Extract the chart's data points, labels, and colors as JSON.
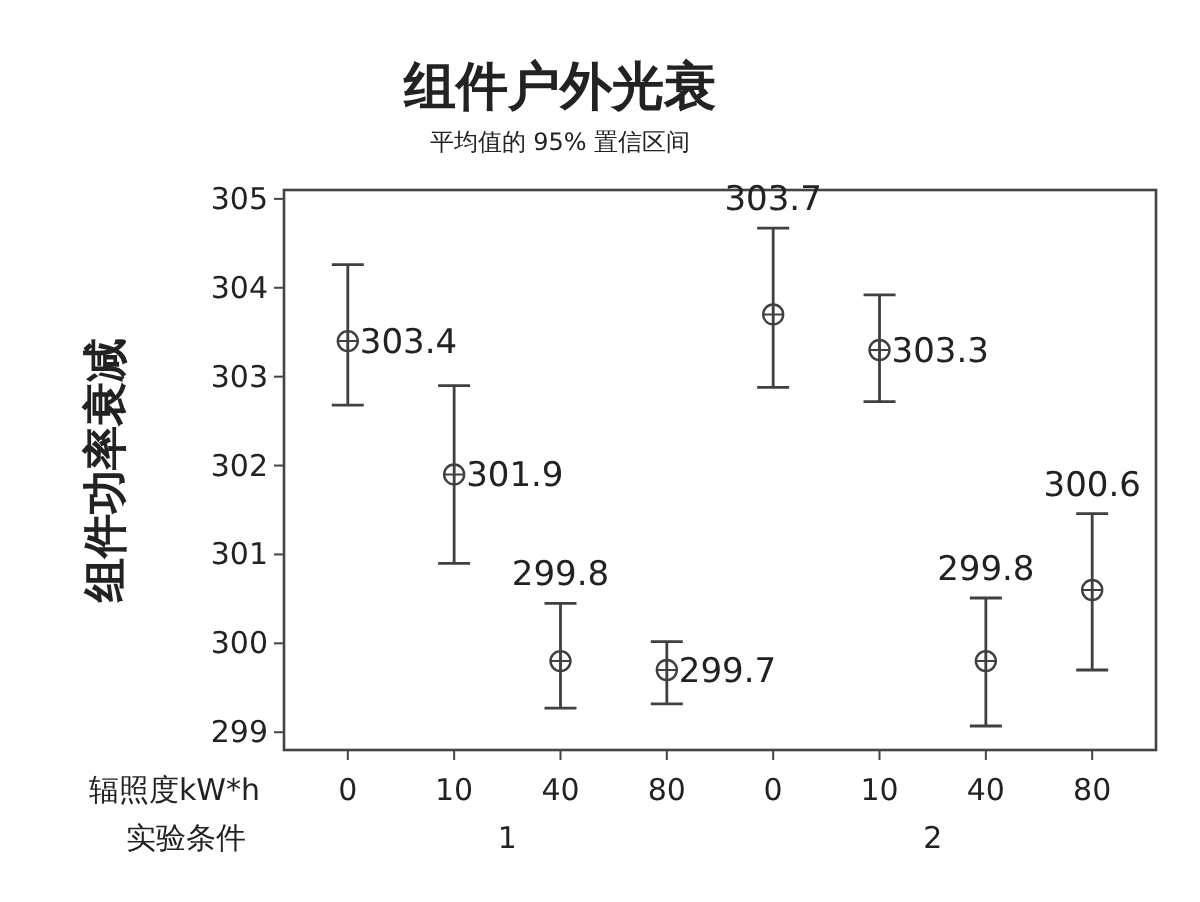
{
  "chart_data": {
    "type": "scatter",
    "title": "组件户外光衰",
    "subtitle": "平均值的 95% 置信区间",
    "ylabel": "组件功率衰减",
    "xlabel": "辐照度kW*h",
    "annotations": [
      "实验条件",
      "1",
      "2"
    ],
    "categories": [
      "0",
      "10",
      "40",
      "80",
      "0",
      "10",
      "40",
      "80"
    ],
    "series": [
      {
        "color": "#404040",
        "values": [
          303.4,
          301.9,
          299.8,
          299.7,
          303.7,
          303.3,
          299.8,
          300.6
        ],
        "errors": [
          [
            302.68,
            304.26
          ],
          [
            300.9,
            302.9
          ],
          [
            299.27,
            300.45
          ],
          [
            299.32,
            300.02
          ],
          [
            302.88,
            304.67
          ],
          [
            302.72,
            303.92
          ],
          [
            299.07,
            300.51
          ],
          [
            299.7,
            301.46
          ]
        ]
      }
    ],
    "ylim": [
      298.8,
      305.1
    ],
    "yticks": [
      299,
      300,
      301,
      302,
      303,
      304,
      305
    ],
    "data_labels": true,
    "marker": "circle",
    "grid": false
  }
}
